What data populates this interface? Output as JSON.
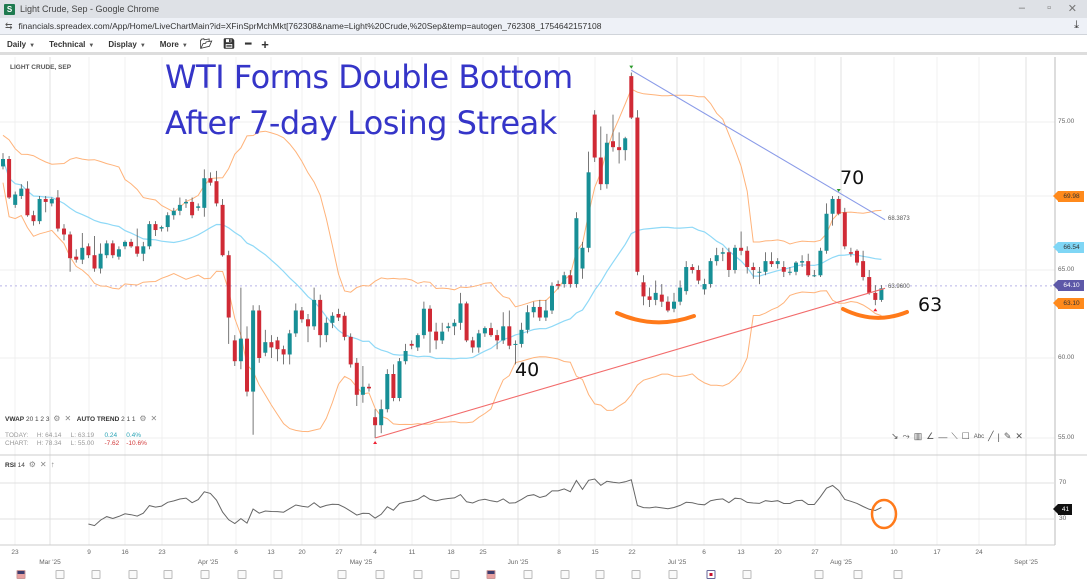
{
  "window": {
    "title": "Light Crude, Sep - Google Chrome",
    "favicon_letter": "S",
    "url": "financials.spreadex.com/App/Home/LiveChartMain?id=XFinSprMchMkt[762308&name=Light%20Crude,%20Sep&temp=autogen_762308_1754642157108"
  },
  "toolbar": {
    "menus": [
      "Daily",
      "Technical",
      "Display",
      "More"
    ],
    "icons": [
      "folder-open",
      "save",
      "zoom-out",
      "zoom-in"
    ]
  },
  "chart": {
    "symbol": "LIGHT CRUDE, SEP",
    "headline": [
      "WTI Forms Double Bottom",
      "After 7-day Losing Streak"
    ],
    "annotations": {
      "peak_label": "70",
      "low_label": "63",
      "rsi_label": "40"
    },
    "indicators": {
      "vwap": "VWAP",
      "vwap_params": "20 1 2 3",
      "autotrend": "AUTO TREND",
      "autotrend_params": "2 1 1",
      "rsi": "RSI",
      "rsi_params": "14"
    },
    "stats": {
      "today": {
        "label": "TODAY:",
        "high": "H: 64.14",
        "low": "L: 63.19",
        "change": "0.24",
        "pct": "0.4%"
      },
      "chart": {
        "label": "CHART:",
        "high": "H: 78.34",
        "low": "L: 55.00",
        "change": "-7.62",
        "pct": "-10.6%"
      }
    },
    "price_axis": [
      "75.00",
      "65.00",
      "60.00",
      "55.00"
    ],
    "price_ticks": [
      75,
      65,
      60,
      55
    ],
    "price_tags": [
      {
        "value": "69.98",
        "color": "#ff8a1c",
        "text_color": "#333"
      },
      {
        "value": "66.54",
        "color": "#7fd6f5",
        "text_color": "#333"
      },
      {
        "value": "64.10",
        "color": "#5d58a8",
        "text_color": "#fff"
      },
      {
        "value": "63.10",
        "color": "#ff8a1c",
        "text_color": "#333"
      }
    ],
    "current_price": 64.1,
    "trendlines": [
      {
        "name": "support",
        "color": "#f26b6b",
        "from": {
          "candle": 61,
          "price": 55.0
        },
        "to": {
          "candle": 144.6,
          "price": 63.96
        },
        "label": "63.9600"
      },
      {
        "name": "resistance",
        "color": "#8a9be8",
        "from": {
          "candle": 103,
          "price": 78.5
        },
        "to": {
          "candle": 144.6,
          "price": 68.39
        },
        "label": "68.3873"
      }
    ],
    "colors": {
      "up": "#178f96",
      "down": "#d02a35",
      "bands": "#ffb37a",
      "mid": "#8fd9f7",
      "annotation": "#ff7a1a",
      "headline": "#3535c8"
    },
    "rsi_axis": [
      "70",
      "30"
    ],
    "rsi_tag": "41",
    "x_axis": {
      "days": [
        "23",
        "9",
        "16",
        "23",
        "6",
        "13",
        "20",
        "27",
        "4",
        "11",
        "18",
        "25",
        "8",
        "15",
        "22",
        "6",
        "13",
        "20",
        "27",
        "10",
        "17",
        "24"
      ],
      "months": [
        "Mar '25",
        "Apr '25",
        "May '25",
        "Jun '25",
        "Jul '25",
        "Aug '25",
        "Sept '25"
      ]
    },
    "events": [
      "us",
      "cal",
      "cal",
      "cal",
      "cal",
      "cal",
      "cal",
      "cal",
      "cal",
      "cal",
      "cal",
      "cal",
      "us",
      "cal",
      "cal",
      "cal",
      "cal",
      "cal",
      "uk",
      "cal",
      "cal",
      "cal",
      "cal"
    ],
    "drawing_tools": [
      "arrow-tool",
      "curve-tool",
      "fib-tool",
      "fan-tool",
      "hline-tool",
      "segment-tool",
      "rectangle-tool",
      "text-tool",
      "line-tool",
      "vline-tool",
      "pencil-tool",
      "close-tools"
    ]
  },
  "chart_data": {
    "type": "candlestick",
    "ohlc": [
      [
        72.0,
        72.9,
        71.8,
        72.5
      ],
      [
        72.5,
        72.7,
        69.8,
        69.9
      ],
      [
        69.4,
        70.3,
        69.2,
        70.1
      ],
      [
        70.0,
        70.8,
        69.8,
        70.5
      ],
      [
        70.5,
        71.0,
        68.6,
        68.7
      ],
      [
        68.7,
        69.0,
        68.0,
        68.3
      ],
      [
        68.3,
        70.0,
        68.1,
        69.8
      ],
      [
        69.8,
        70.0,
        68.9,
        69.6
      ],
      [
        69.5,
        69.9,
        69.3,
        69.8
      ],
      [
        69.9,
        70.4,
        67.6,
        67.8
      ],
      [
        67.8,
        68.1,
        67.0,
        67.4
      ],
      [
        67.4,
        67.6,
        64.9,
        65.8
      ],
      [
        65.9,
        66.4,
        65.5,
        65.7
      ],
      [
        65.7,
        67.5,
        65.4,
        66.5
      ],
      [
        66.6,
        66.8,
        65.8,
        66.0
      ],
      [
        66.0,
        67.3,
        64.9,
        65.1
      ],
      [
        65.1,
        66.8,
        64.8,
        66.1
      ],
      [
        66.0,
        67.0,
        65.8,
        66.8
      ],
      [
        66.8,
        67.0,
        65.8,
        66.0
      ],
      [
        65.9,
        66.6,
        65.7,
        66.4
      ],
      [
        66.6,
        67.0,
        66.4,
        66.9
      ],
      [
        66.9,
        67.1,
        66.5,
        66.6
      ],
      [
        66.6,
        67.8,
        65.9,
        66.1
      ],
      [
        66.1,
        66.9,
        65.6,
        66.6
      ],
      [
        66.6,
        68.3,
        66.4,
        68.1
      ],
      [
        68.1,
        68.3,
        67.3,
        67.7
      ],
      [
        67.8,
        68.0,
        67.6,
        67.9
      ],
      [
        67.9,
        68.9,
        67.6,
        68.7
      ],
      [
        68.7,
        69.2,
        68.4,
        69.0
      ],
      [
        69.0,
        69.9,
        68.7,
        69.4
      ],
      [
        69.5,
        69.8,
        69.2,
        69.6
      ],
      [
        69.6,
        69.9,
        68.5,
        68.7
      ],
      [
        69.2,
        69.5,
        69.0,
        69.3
      ],
      [
        69.2,
        71.8,
        68.6,
        71.2
      ],
      [
        71.2,
        71.6,
        70.7,
        70.9
      ],
      [
        71.0,
        71.7,
        69.3,
        69.5
      ],
      [
        69.4,
        69.8,
        65.9,
        66.0
      ],
      [
        66.0,
        66.3,
        60.8,
        62.3
      ],
      [
        61.0,
        61.3,
        59.5,
        59.8
      ],
      [
        59.8,
        64.0,
        59.3,
        61.1
      ],
      [
        61.1,
        61.8,
        57.6,
        57.9
      ],
      [
        57.9,
        63.0,
        55.2,
        62.7
      ],
      [
        62.7,
        63.0,
        59.7,
        60.0
      ],
      [
        60.3,
        61.6,
        60.1,
        60.9
      ],
      [
        60.9,
        61.3,
        60.0,
        60.6
      ],
      [
        61.0,
        61.2,
        59.8,
        60.5
      ],
      [
        60.5,
        60.7,
        59.6,
        60.2
      ],
      [
        60.2,
        61.6,
        59.6,
        61.4
      ],
      [
        61.4,
        63.1,
        61.2,
        62.7
      ],
      [
        62.7,
        62.9,
        62.0,
        62.2
      ],
      [
        62.2,
        62.5,
        60.9,
        61.8
      ],
      [
        61.8,
        64.0,
        61.6,
        63.3
      ],
      [
        63.3,
        63.6,
        60.6,
        61.3
      ],
      [
        61.3,
        62.3,
        60.9,
        62.0
      ],
      [
        62.0,
        62.6,
        61.7,
        62.4
      ],
      [
        62.5,
        62.8,
        62.1,
        62.3
      ],
      [
        62.4,
        62.6,
        61.0,
        61.2
      ],
      [
        61.2,
        61.4,
        59.4,
        59.6
      ],
      [
        59.7,
        60.0,
        57.0,
        57.7
      ],
      [
        57.7,
        59.5,
        57.2,
        58.2
      ],
      [
        58.2,
        58.4,
        57.9,
        58.1
      ],
      [
        56.3,
        56.8,
        55.0,
        55.8
      ],
      [
        55.8,
        57.4,
        55.3,
        56.8
      ],
      [
        56.8,
        59.3,
        56.6,
        59.0
      ],
      [
        59.0,
        59.6,
        57.3,
        57.5
      ],
      [
        57.5,
        60.0,
        57.3,
        59.8
      ],
      [
        59.8,
        60.8,
        59.6,
        60.4
      ],
      [
        60.8,
        61.0,
        60.5,
        60.7
      ],
      [
        60.6,
        61.4,
        60.4,
        61.3
      ],
      [
        61.3,
        63.2,
        61.1,
        62.8
      ],
      [
        62.8,
        63.0,
        60.3,
        61.5
      ],
      [
        61.5,
        62.0,
        60.5,
        61.0
      ],
      [
        61.0,
        62.0,
        60.8,
        61.5
      ],
      [
        61.7,
        62.0,
        61.5,
        61.8
      ],
      [
        61.8,
        62.2,
        61.3,
        62.0
      ],
      [
        62.0,
        63.7,
        61.6,
        63.1
      ],
      [
        63.1,
        63.2,
        60.9,
        61.0
      ],
      [
        61.0,
        61.2,
        60.3,
        60.6
      ],
      [
        60.6,
        61.6,
        60.3,
        61.4
      ],
      [
        61.4,
        61.8,
        61.2,
        61.7
      ],
      [
        61.7,
        62.0,
        61.2,
        61.3
      ],
      [
        61.3,
        61.6,
        60.5,
        61.0
      ],
      [
        61.0,
        62.6,
        60.8,
        61.8
      ],
      [
        61.8,
        62.7,
        60.5,
        60.7
      ],
      [
        60.8,
        61.0,
        59.6,
        60.8
      ],
      [
        60.8,
        62.0,
        60.6,
        61.6
      ],
      [
        61.6,
        63.0,
        61.4,
        62.6
      ],
      [
        62.6,
        63.2,
        62.3,
        62.9
      ],
      [
        62.9,
        63.3,
        62.1,
        62.3
      ],
      [
        62.3,
        63.3,
        62.1,
        62.7
      ],
      [
        62.7,
        64.3,
        62.5,
        64.1
      ],
      [
        64.2,
        64.4,
        63.9,
        64.1
      ],
      [
        64.2,
        64.9,
        64.0,
        64.7
      ],
      [
        64.7,
        65.0,
        64.0,
        64.2
      ],
      [
        64.2,
        68.9,
        64.0,
        68.5
      ],
      [
        65.1,
        66.9,
        64.5,
        66.5
      ],
      [
        66.5,
        73.0,
        66.2,
        71.6
      ],
      [
        75.5,
        75.8,
        72.3,
        72.6
      ],
      [
        72.6,
        74.7,
        70.4,
        70.8
      ],
      [
        70.8,
        74.2,
        70.5,
        73.6
      ],
      [
        73.7,
        75.5,
        73.0,
        73.3
      ],
      [
        73.3,
        74.3,
        72.2,
        73.1
      ],
      [
        73.1,
        74.0,
        72.4,
        73.9
      ],
      [
        78.1,
        78.34,
        75.2,
        75.3
      ],
      [
        75.3,
        75.8,
        64.7,
        64.9
      ],
      [
        64.3,
        64.7,
        63.0,
        63.5
      ],
      [
        63.5,
        64.0,
        62.9,
        63.3
      ],
      [
        63.3,
        64.4,
        63.0,
        63.7
      ],
      [
        63.6,
        64.2,
        62.9,
        63.2
      ],
      [
        63.2,
        63.5,
        62.6,
        62.7
      ],
      [
        62.8,
        63.7,
        62.6,
        63.2
      ],
      [
        63.2,
        64.4,
        63.0,
        64.0
      ],
      [
        63.8,
        65.6,
        63.6,
        65.2
      ],
      [
        65.2,
        65.4,
        64.8,
        65.0
      ],
      [
        65.0,
        65.3,
        64.2,
        64.4
      ],
      [
        63.9,
        64.5,
        63.6,
        64.2
      ],
      [
        64.2,
        65.8,
        64.0,
        65.6
      ],
      [
        65.6,
        66.5,
        65.3,
        66.0
      ],
      [
        66.1,
        66.5,
        65.6,
        66.2
      ],
      [
        66.2,
        66.5,
        64.6,
        65.0
      ],
      [
        65.0,
        66.7,
        64.8,
        66.5
      ],
      [
        66.5,
        67.6,
        66.0,
        66.3
      ],
      [
        66.3,
        66.6,
        64.8,
        65.2
      ],
      [
        65.2,
        65.5,
        64.5,
        65.0
      ],
      [
        64.9,
        65.2,
        64.2,
        64.9
      ],
      [
        64.9,
        66.2,
        64.7,
        65.6
      ],
      [
        65.6,
        66.2,
        65.2,
        65.4
      ],
      [
        65.4,
        65.8,
        65.1,
        65.6
      ],
      [
        65.2,
        65.6,
        64.6,
        64.9
      ],
      [
        64.9,
        65.2,
        64.7,
        64.9
      ],
      [
        64.9,
        65.6,
        64.7,
        65.5
      ],
      [
        65.5,
        66.0,
        65.2,
        65.6
      ],
      [
        65.6,
        66.1,
        64.6,
        64.7
      ],
      [
        64.7,
        65.0,
        64.6,
        64.7
      ],
      [
        64.7,
        66.5,
        64.6,
        66.3
      ],
      [
        66.3,
        69.5,
        66.1,
        68.8
      ],
      [
        68.8,
        70.0,
        68.0,
        69.8
      ],
      [
        69.8,
        70.0,
        68.7,
        68.8
      ],
      [
        68.9,
        69.2,
        66.4,
        66.6
      ],
      [
        66.2,
        66.5,
        65.9,
        66.1
      ],
      [
        66.3,
        66.4,
        65.3,
        65.5
      ],
      [
        65.6,
        66.3,
        64.4,
        64.6
      ],
      [
        64.6,
        65.0,
        63.6,
        63.7
      ],
      [
        63.7,
        64.14,
        63.0,
        63.3
      ],
      [
        63.3,
        64.14,
        63.19,
        63.96
      ]
    ],
    "markers": [
      {
        "type": "peak",
        "candle": 103
      },
      {
        "type": "peak",
        "candle": 137
      },
      {
        "type": "trough",
        "candle": 61
      },
      {
        "type": "trough",
        "candle": 143
      }
    ],
    "bollinger": {
      "period": 20,
      "stddev": 2
    },
    "rsi_period": 14,
    "ylim": [
      55,
      78.5
    ],
    "rsi_levels": [
      30,
      70
    ]
  }
}
